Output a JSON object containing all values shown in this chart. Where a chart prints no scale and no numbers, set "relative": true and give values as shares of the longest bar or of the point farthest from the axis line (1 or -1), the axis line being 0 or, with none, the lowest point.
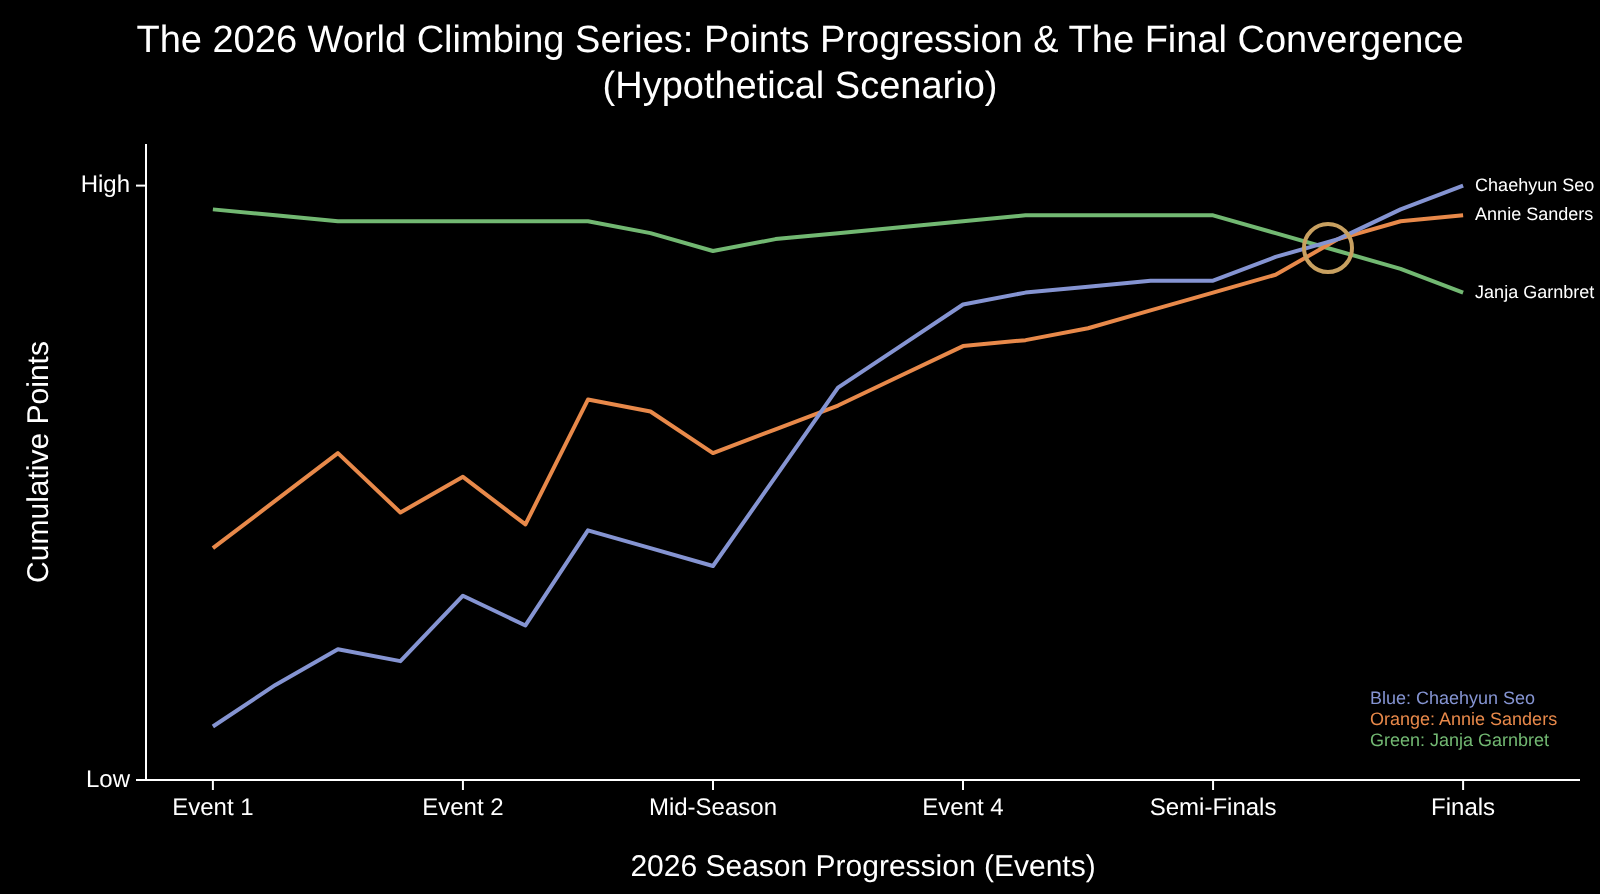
{
  "chart_data": {
    "type": "line",
    "title": "The 2026 World Climbing Series: Points Progression & The Final Convergence",
    "subtitle": "(Hypothetical Scenario)",
    "xlabel": "2026 Season Progression (Events)",
    "ylabel": "Cumulative Points",
    "relative": true,
    "legend": false,
    "grid": false,
    "marker": "none",
    "line_style": "solid",
    "categories": [
      "Event 1",
      null,
      null,
      null,
      "Event 2",
      null,
      null,
      null,
      "Mid-Season",
      null,
      null,
      null,
      "Event 4",
      null,
      null,
      null,
      "Semi-Finals",
      null,
      null,
      null,
      "Finals"
    ],
    "series": [
      {
        "name": "Chaehyun Seo",
        "color": "#8594d2",
        "values": [
          0.09,
          0.16,
          0.22,
          0.2,
          0.31,
          0.26,
          0.42,
          0.39,
          0.36,
          0.51,
          0.66,
          0.73,
          0.8,
          0.82,
          0.83,
          0.84,
          0.84,
          0.88,
          0.91,
          0.96,
          1
        ]
      },
      {
        "name": "Annie Sanders",
        "color": "#e8894a",
        "values": [
          0.39,
          0.47,
          0.55,
          0.45,
          0.51,
          0.43,
          0.64,
          0.62,
          0.55,
          0.59,
          0.63,
          0.68,
          0.73,
          0.74,
          0.76,
          0.79,
          0.82,
          0.85,
          0.91,
          0.94,
          0.95
        ]
      },
      {
        "name": "Janja Garnbret",
        "color": "#72b872",
        "values": [
          0.96,
          0.95,
          0.94,
          0.94,
          0.94,
          0.94,
          0.94,
          0.92,
          0.89,
          0.91,
          0.92,
          0.93,
          0.94,
          0.95,
          0.95,
          0.95,
          0.95,
          0.92,
          0.89,
          0.86,
          0.82
        ]
      }
    ],
    "annotations": [
      "High",
      "Low",
      "Blue: Chaehyun Seo",
      "Orange: Annie Sanders",
      "Green: Janja Garnbret"
    ]
  }
}
